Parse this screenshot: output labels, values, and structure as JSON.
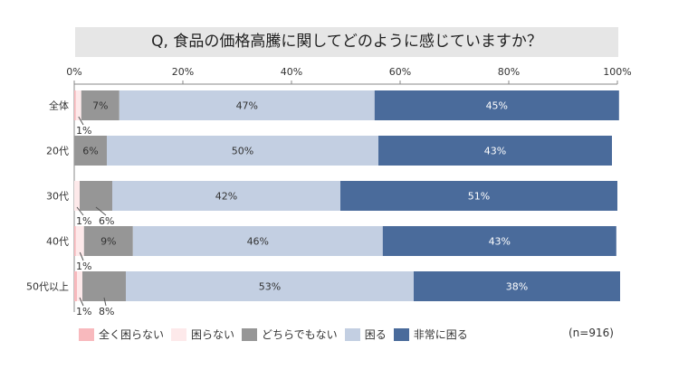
{
  "chart_data": {
    "type": "bar",
    "orientation": "horizontal-stacked-100",
    "title": "Q, 食品の価格高騰に関してどのように感じていますか？",
    "xlim": [
      0,
      100
    ],
    "xticks": [
      "0%",
      "20%",
      "40%",
      "60%",
      "80%",
      "100%"
    ],
    "categories": [
      "全体",
      "20代",
      "30代",
      "40代",
      "50代以上"
    ],
    "series": [
      {
        "name": "全く困らない",
        "color": "#f8b9bd",
        "values": [
          0.3,
          0,
          0,
          0.3,
          0.5
        ],
        "labels": [
          "",
          "",
          "",
          "",
          ""
        ]
      },
      {
        "name": "困らない",
        "color": "#fde9ea",
        "values": [
          1,
          0,
          1,
          1.5,
          1
        ],
        "labels": [
          "1%",
          "",
          "1%",
          "1%",
          "1%"
        ]
      },
      {
        "name": "どちらでもない",
        "color": "#969696",
        "values": [
          7,
          6,
          6,
          9,
          8
        ],
        "labels": [
          "7%",
          "6%",
          "6%",
          "9%",
          "8%"
        ]
      },
      {
        "name": "困る",
        "color": "#c3cfe2",
        "values": [
          47,
          50,
          42,
          46,
          53
        ],
        "labels": [
          "47%",
          "50%",
          "42%",
          "46%",
          "53%"
        ]
      },
      {
        "name": "非常に困る",
        "color": "#4a6b9b",
        "values": [
          45,
          43,
          51,
          43,
          38
        ],
        "labels": [
          "45%",
          "43%",
          "51%",
          "43%",
          "38%"
        ]
      }
    ],
    "outside_labels": [
      [
        1
      ],
      [],
      [
        1,
        2
      ],
      [
        1
      ],
      [
        1,
        2
      ]
    ],
    "legend": "bottom",
    "note": "(n=916)"
  }
}
